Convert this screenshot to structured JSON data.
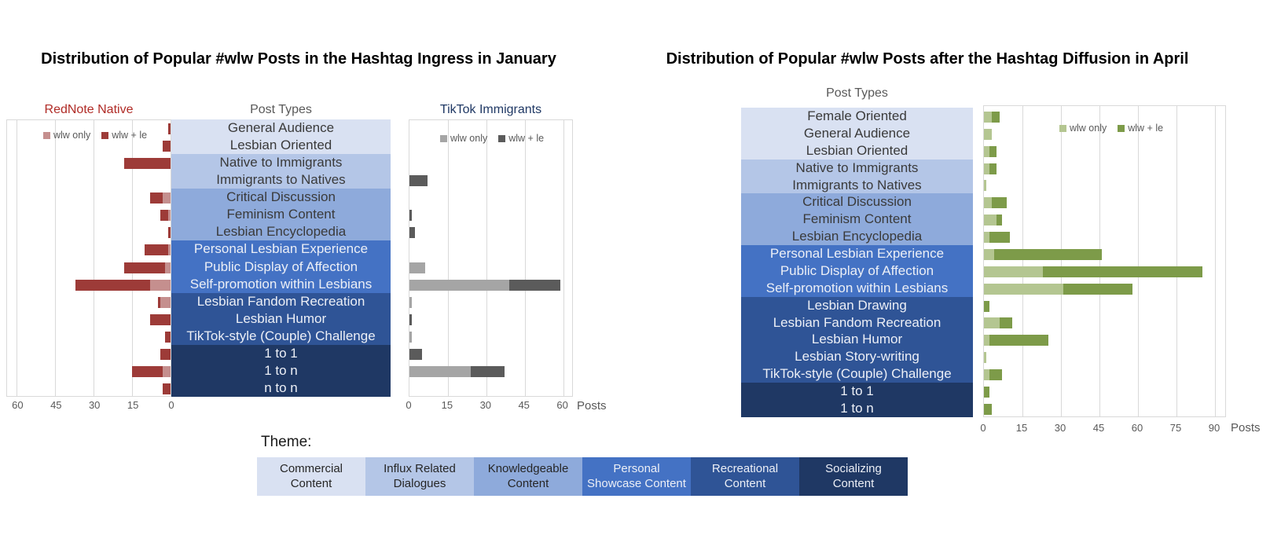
{
  "chart_data": [
    {
      "id": "january",
      "type": "bar",
      "orientation": "horizontal-mirrored-pair",
      "title": "Distribution of Popular #wlw Posts in the Hashtag Ingress in January",
      "panel_labels": {
        "left": "RedNote Native",
        "center": "Post Types",
        "right": "TikTok Immigrants"
      },
      "legend": [
        "wlw only",
        "wlw + le"
      ],
      "xlabel": "Posts",
      "axis": {
        "min": 0,
        "max": 64,
        "ticks": [
          0,
          15,
          30,
          45,
          60
        ]
      },
      "categories": [
        "General Audience",
        "Lesbian Oriented",
        "Native to Immigrants",
        "Immigrants to Natives",
        "Critical Discussion",
        "Feminism Content",
        "Lesbian Encyclopedia",
        "Personal Lesbian Experience",
        "Public Display of Affection",
        "Self-promotion within Lesbians",
        "Lesbian Fandom Recreation",
        "Lesbian Humor",
        "TikTok-style (Couple) Challenge",
        "1 to 1",
        "1 to n",
        "n to n"
      ],
      "category_theme_index": [
        0,
        0,
        1,
        1,
        2,
        2,
        2,
        3,
        3,
        3,
        4,
        4,
        4,
        5,
        5,
        5
      ],
      "series": [
        {
          "name": "RedNote Native - wlw only",
          "panel": "left",
          "color_key": "rednote_light",
          "values": [
            0,
            0,
            0,
            0,
            3,
            1,
            0,
            1,
            2,
            8,
            4,
            0,
            0,
            0,
            3,
            0
          ]
        },
        {
          "name": "RedNote Native - wlw + le",
          "panel": "left",
          "color_key": "rednote_dark",
          "values": [
            1,
            3,
            18,
            0,
            5,
            3,
            1,
            9,
            16,
            29,
            1,
            8,
            2,
            4,
            12,
            3
          ]
        },
        {
          "name": "TikTok Immigrants - wlw only",
          "panel": "right",
          "color_key": "tiktok_light",
          "values": [
            0,
            0,
            0,
            0,
            0,
            0,
            0,
            0,
            6,
            39,
            1,
            0,
            1,
            0,
            24,
            0
          ]
        },
        {
          "name": "TikTok Immigrants - wlw + le",
          "panel": "right",
          "color_key": "tiktok_dark",
          "values": [
            0,
            0,
            0,
            7,
            0,
            1,
            2,
            0,
            0,
            20,
            0,
            1,
            0,
            5,
            13,
            0
          ]
        }
      ]
    },
    {
      "id": "april",
      "type": "bar",
      "orientation": "horizontal",
      "title": "Distribution of Popular #wlw Posts after the Hashtag Diffusion in April",
      "panel_labels": {
        "center": "Post Types"
      },
      "legend": [
        "wlw only",
        "wlw + le"
      ],
      "xlabel": "Posts",
      "axis": {
        "min": 0,
        "max": 94,
        "ticks": [
          0,
          15,
          30,
          45,
          60,
          75,
          90
        ]
      },
      "categories": [
        "Female Oriented",
        "General Audience",
        "Lesbian Oriented",
        "Native to Immigrants",
        "Immigrants to Natives",
        "Critical Discussion",
        "Feminism Content",
        "Lesbian Encyclopedia",
        "Personal Lesbian Experience",
        "Public Display of Affection",
        "Self-promotion within Lesbians",
        "Lesbian Drawing",
        "Lesbian Fandom Recreation",
        "Lesbian Humor",
        "Lesbian Story-writing",
        "TikTok-style (Couple) Challenge",
        "1 to 1",
        "1 to n"
      ],
      "category_theme_index": [
        0,
        0,
        0,
        1,
        1,
        2,
        2,
        2,
        3,
        3,
        3,
        4,
        4,
        4,
        4,
        4,
        5,
        5
      ],
      "series": [
        {
          "name": "wlw only",
          "panel": "right",
          "color_key": "april_light",
          "values": [
            3,
            3,
            2,
            2,
            1,
            3,
            5,
            2,
            4,
            23,
            31,
            0,
            6,
            2,
            1,
            2,
            0,
            0
          ]
        },
        {
          "name": "wlw + le",
          "panel": "right",
          "color_key": "april_dark",
          "values": [
            3,
            0,
            3,
            3,
            0,
            6,
            2,
            8,
            42,
            62,
            27,
            2,
            5,
            23,
            0,
            5,
            2,
            3
          ]
        }
      ]
    }
  ],
  "themes": {
    "label": "Theme:",
    "items": [
      {
        "name": "Commercial Content",
        "color": "#D9E1F2",
        "text": "dark"
      },
      {
        "name": "Influx Related Dialogues",
        "color": "#B4C6E7",
        "text": "dark"
      },
      {
        "name": "Knowledgeable Content",
        "color": "#8EAADB",
        "text": "dark"
      },
      {
        "name": "Personal Showcase Content",
        "color": "#4472C4",
        "text": "light"
      },
      {
        "name": "Recreational Content",
        "color": "#2F5496",
        "text": "light"
      },
      {
        "name": "Socializing Content",
        "color": "#1F3864",
        "text": "light"
      }
    ]
  },
  "colors": {
    "rednote_light": "#C58F8E",
    "rednote_dark": "#9D3B38",
    "tiktok_light": "#A5A5A5",
    "tiktok_dark": "#5B5B5B",
    "april_light": "#B4C691",
    "april_dark": "#7D9B49",
    "rednote_label": "#B02B26",
    "tiktok_label": "#1F3864",
    "axis_text": "#595959",
    "gridline": "#D9D9D9",
    "strip_text_dark": "#3A3A3A",
    "strip_text_light": "#ECEFF6"
  }
}
